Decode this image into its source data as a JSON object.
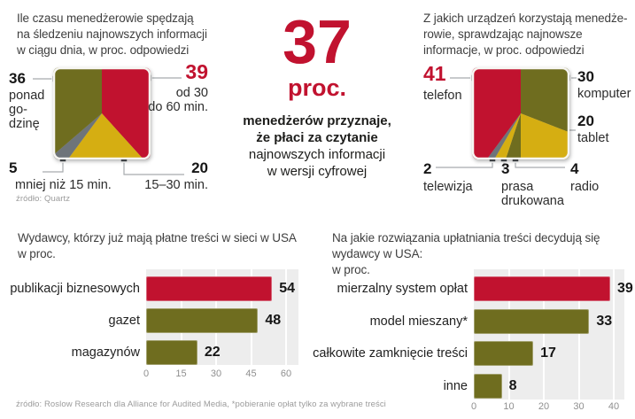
{
  "colors": {
    "red": "#c1122f",
    "olive": "#6f6d1f",
    "yellow": "#d5ae12",
    "gray": "#6e747a",
    "plot_bg": "#ededed"
  },
  "center_stat": {
    "number": "37",
    "unit": "proc.",
    "line1": "menedżerów przyznaje,",
    "line2": "że płaci za czytanie",
    "line3": "najnowszych informacji",
    "line4": "w wersji cyfrowej"
  },
  "footer_source": "źródło: Roslow Research dla Alliance for Audited Media, *pobieranie opłat tylko za wybrane treści",
  "chart_data": [
    {
      "id": "time-spent-square-pie",
      "type": "square-pie",
      "title": "Ile czasu menedżerowie spędzają\nna śledzeniu najnowszych informacji\nw ciągu dnia, w proc. odpowiedzi",
      "source": "źródło: Quartz",
      "slices": [
        {
          "label": "od 30\ndo 60 min.",
          "value": 39,
          "color": "red"
        },
        {
          "label": "15–30 min.",
          "value": 20,
          "color": "yellow"
        },
        {
          "label": "mniej niż 15 min.",
          "value": 5,
          "color": "gray"
        },
        {
          "label": "ponad\ngo-\ndzinę",
          "value": 36,
          "color": "olive"
        }
      ]
    },
    {
      "id": "devices-square-pie",
      "type": "square-pie",
      "title": "Z jakich urządzeń korzystają menedże-\nrowie, sprawdzając najnowsze\ninformacje, w proc. odpowiedzi",
      "slices": [
        {
          "label": "komputer",
          "value": 30,
          "color": "olive"
        },
        {
          "label": "tablet",
          "value": 20,
          "color": "yellow"
        },
        {
          "label": "radio",
          "value": 4,
          "color": "olive"
        },
        {
          "label": "prasa\ndrukowana",
          "value": 3,
          "color": "yellow"
        },
        {
          "label": "telewizja",
          "value": 2,
          "color": "gray"
        },
        {
          "label": "telefon",
          "value": 41,
          "color": "red"
        }
      ]
    },
    {
      "id": "publishers-with-paid-content",
      "type": "bar",
      "title": "Wydawcy, którzy już mają płatne treści w sieci w USA\nw proc.",
      "categories": [
        "publikacji biznesowych",
        "gazet",
        "magazynów"
      ],
      "values": [
        54,
        48,
        22
      ],
      "bar_colors": [
        "red",
        "olive",
        "olive"
      ],
      "xticks": [
        0,
        15,
        30,
        45,
        60
      ],
      "xlim": [
        0,
        60
      ]
    },
    {
      "id": "paywall-models",
      "type": "bar",
      "title": "Na jakie rozwiązania upłatniania treści decydują się\nwydawcy w USA:\nw proc.",
      "categories": [
        "mierzalny system opłat",
        "model mieszany*",
        "całkowite zamknięcie treści",
        "inne"
      ],
      "values": [
        39,
        33,
        17,
        8
      ],
      "bar_colors": [
        "red",
        "olive",
        "olive",
        "olive"
      ],
      "xticks": [
        0,
        10,
        20,
        30,
        40
      ],
      "xlim": [
        0,
        40
      ]
    }
  ]
}
